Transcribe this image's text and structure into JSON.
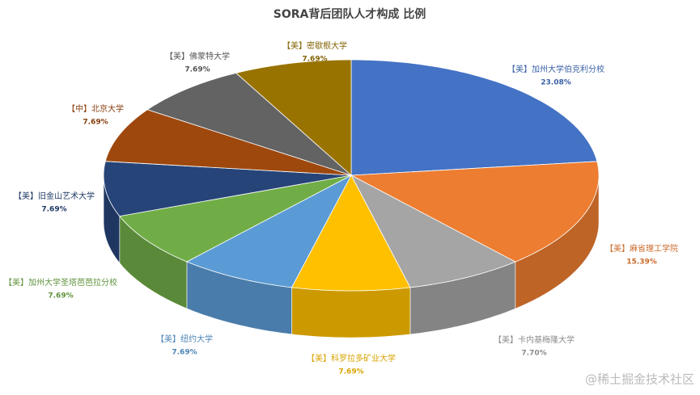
{
  "chart_data": {
    "type": "pie",
    "title": "SORA背后团队人才构成 比例",
    "categories": [
      "【美】加州大学伯克利分校",
      "【美】麻省理工学院",
      "【美】卡内基梅隆大学",
      "【美】科罗拉多矿业大学",
      "【美】纽约大学",
      "【美】加州大学圣塔芭芭拉分校",
      "【美】旧金山艺术大学",
      "【中】北京大学",
      "【美】佛蒙特大学",
      "【美】密歇根大学"
    ],
    "values": [
      23.08,
      15.39,
      7.7,
      7.69,
      7.69,
      7.69,
      7.69,
      7.69,
      7.69,
      7.69
    ],
    "value_labels": [
      "23.08%",
      "15.39%",
      "7.70%",
      "7.69%",
      "7.69%",
      "7.69%",
      "7.69%",
      "7.69%",
      "7.69%",
      "7.69%"
    ],
    "colors": [
      "#4472c4",
      "#ed7d31",
      "#a5a5a5",
      "#ffc000",
      "#5b9bd5",
      "#70ad47",
      "#264478",
      "#9e480e",
      "#636363",
      "#997300"
    ],
    "watermark": "@稀土掘金技术社区"
  }
}
